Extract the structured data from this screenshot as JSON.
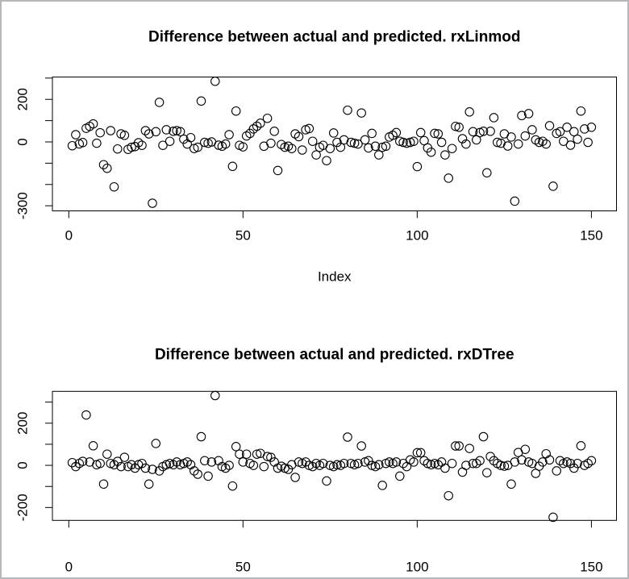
{
  "window": {
    "background": "#ffffff",
    "border_color": "#b4b8bb",
    "point_color": "#000000"
  },
  "chart_data": [
    {
      "type": "scatter",
      "title": "Difference between actual and predicted. rxLinmod",
      "xlabel": "Index",
      "ylabel": "",
      "marker": "open-circle",
      "x_is_index": true,
      "xlim": [
        -4.7,
        157.2
      ],
      "ylim": [
        -324,
        305
      ],
      "xticks": [
        0,
        50,
        100,
        150
      ],
      "xtick_labels": [
        "0",
        "50",
        "100",
        "150"
      ],
      "yticks": [
        300,
        200,
        100,
        0,
        -100,
        -200,
        -300
      ],
      "ytick_labels": [
        "",
        "200",
        "",
        "0",
        "",
        "",
        "-300"
      ],
      "grid": false,
      "values": [
        -18,
        34,
        -9,
        -3,
        64,
        73,
        85,
        -6,
        43,
        -107,
        -124,
        53,
        -211,
        -33,
        38,
        31,
        -35,
        -25,
        -22,
        -4,
        -16,
        53,
        38,
        -288,
        48,
        186,
        -16,
        57,
        3,
        50,
        53,
        48,
        13,
        -10,
        20,
        -31,
        -25,
        192,
        -2,
        -6,
        0,
        285,
        -15,
        -20,
        -10,
        34,
        -115,
        145,
        -16,
        -23,
        28,
        40,
        61,
        74,
        88,
        -20,
        111,
        -6,
        50,
        -134,
        -12,
        -25,
        -20,
        -31,
        38,
        25,
        -38,
        57,
        63,
        3,
        -61,
        -25,
        -16,
        -88,
        -31,
        42,
        -2,
        -25,
        10,
        149,
        -2,
        -6,
        -10,
        136,
        10,
        -28,
        40,
        -20,
        -61,
        -25,
        -20,
        23,
        31,
        44,
        3,
        -2,
        -6,
        -2,
        3,
        -116,
        44,
        6,
        -28,
        -48,
        40,
        38,
        -2,
        -61,
        -170,
        -31,
        73,
        69,
        15,
        -10,
        141,
        48,
        10,
        44,
        50,
        -145,
        50,
        114,
        -2,
        -6,
        38,
        -19,
        23,
        -278,
        -10,
        124,
        28,
        133,
        57,
        10,
        -2,
        3,
        -10,
        76,
        -208,
        40,
        48,
        3,
        69,
        -15,
        48,
        13,
        145,
        61,
        -2,
        69
      ]
    },
    {
      "type": "scatter",
      "title": "Difference between actual and predicted. rxDTree",
      "xlabel": "",
      "ylabel": "",
      "marker": "open-circle",
      "x_is_index": true,
      "xlim": [
        -4.7,
        157.2
      ],
      "ylim": [
        -261,
        351
      ],
      "xticks": [
        0,
        50,
        100,
        150
      ],
      "xtick_labels": [
        "0",
        "50",
        "100",
        "150"
      ],
      "yticks": [
        300,
        200,
        100,
        0,
        -100,
        -200
      ],
      "ytick_labels": [
        "",
        "200",
        "",
        "0",
        "",
        "-200"
      ],
      "grid": false,
      "values": [
        13,
        -6,
        9,
        19,
        239,
        16,
        93,
        3,
        9,
        -89,
        53,
        9,
        3,
        19,
        -6,
        38,
        -6,
        3,
        -13,
        3,
        9,
        -13,
        -89,
        -19,
        104,
        -26,
        -6,
        3,
        9,
        3,
        16,
        3,
        9,
        16,
        3,
        -26,
        -42,
        136,
        22,
        -51,
        16,
        331,
        22,
        -6,
        -13,
        0,
        -98,
        89,
        53,
        16,
        53,
        9,
        0,
        53,
        57,
        -6,
        42,
        38,
        16,
        -13,
        -4,
        -13,
        -19,
        3,
        -57,
        16,
        9,
        16,
        0,
        -6,
        9,
        0,
        9,
        -74,
        0,
        -6,
        3,
        0,
        9,
        134,
        9,
        3,
        9,
        92,
        16,
        22,
        0,
        -6,
        3,
        -95,
        9,
        16,
        9,
        16,
        -51,
        9,
        -6,
        26,
        16,
        60,
        60,
        22,
        9,
        3,
        9,
        3,
        16,
        -13,
        -144,
        9,
        92,
        92,
        -32,
        0,
        80,
        9,
        9,
        22,
        136,
        -35,
        42,
        22,
        9,
        0,
        -4,
        0,
        -89,
        16,
        61,
        26,
        76,
        16,
        9,
        -38,
        -4,
        16,
        55,
        26,
        -246,
        -26,
        22,
        9,
        16,
        9,
        -13,
        9,
        93,
        0,
        9,
        22
      ]
    }
  ]
}
